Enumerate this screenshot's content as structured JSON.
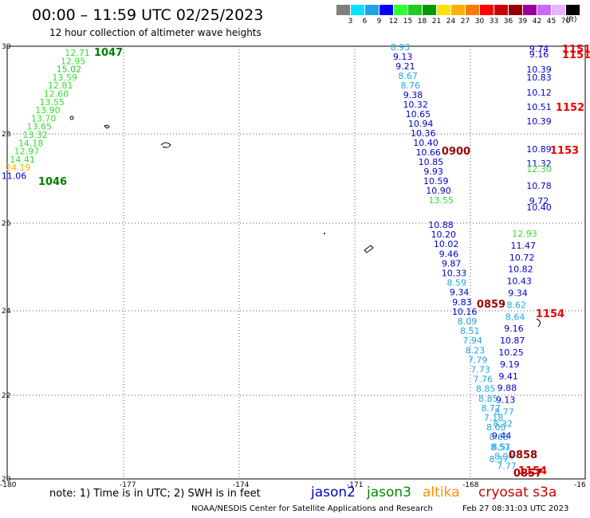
{
  "header": {
    "title": "00:00 – 11:59 UTC 02/25/2023",
    "subtitle": "12 hour collection of altimeter wave heights"
  },
  "legend": {
    "unit": "(ft)",
    "bins": [
      {
        "label": "3",
        "color": "#7f7f7f"
      },
      {
        "label": "6",
        "color": "#00e5ff"
      },
      {
        "label": "9",
        "color": "#1fa5e6"
      },
      {
        "label": "12",
        "color": "#0000ff"
      },
      {
        "label": "15",
        "color": "#33ff33"
      },
      {
        "label": "18",
        "color": "#1fcc1f"
      },
      {
        "label": "21",
        "color": "#009900"
      },
      {
        "label": "24",
        "color": "#ffe000"
      },
      {
        "label": "27",
        "color": "#ffb000"
      },
      {
        "label": "30",
        "color": "#ff7a00"
      },
      {
        "label": "33",
        "color": "#ff0000"
      },
      {
        "label": "36",
        "color": "#cc0000"
      },
      {
        "label": "39",
        "color": "#990000"
      },
      {
        "label": "42",
        "color": "#990099"
      },
      {
        "label": "45",
        "color": "#cc66ff"
      },
      {
        "label": "70",
        "color": "#e5b3ff"
      },
      {
        "label": "",
        "color": "#000000"
      }
    ]
  },
  "axes": {
    "lat_labels": [
      "30",
      "28",
      "26",
      "24",
      "22",
      "20"
    ],
    "lon_labels": [
      "-180",
      "-177",
      "-174",
      "-171",
      "-168",
      "-16"
    ]
  },
  "tracks": {
    "west": {
      "color_light": "#66e666",
      "color_dark": "#008000",
      "values": [
        "12.71",
        "12.95",
        "15.02",
        "13.59",
        "12.81",
        "12.60",
        "13.55",
        "13.90",
        "13.70",
        "13.65",
        "13.32",
        "14.18",
        "12.97",
        "14.41",
        "24.19",
        "11.06"
      ],
      "time_top": "1047",
      "time_bottom": "1046"
    },
    "middle_upper": [
      "8.93",
      "9.13",
      "9.21",
      "8.67",
      "8.76",
      "9.38",
      "10.32",
      "10.65",
      "10.94",
      "10.36",
      "10.40",
      "10.66",
      "10.85",
      "9.93",
      "10.59",
      "10.90",
      "13.55"
    ],
    "middle_time_upper": "0900",
    "middle_lower": [
      "10.88",
      "10.20",
      "10.02",
      "9.46",
      "9.87",
      "10.33",
      "8.59",
      "9.34",
      "9.83",
      "10.16",
      "8.09",
      "8.51",
      "7.94",
      "8.23",
      "7.79",
      "7.73",
      "7.76",
      "8.85",
      "8.85",
      "8.77",
      "7.18",
      "8.00",
      "8.63",
      "8.51",
      "8.04",
      "7.77"
    ],
    "middle_time_lower": "0859",
    "east_upper": [
      "9.74",
      "9.16",
      "10.39",
      "10.83",
      "10.12",
      "10.51",
      "10.39",
      "10.89",
      "11.32",
      "12.30",
      "10.78",
      "9.72",
      "10.40"
    ],
    "east_lower": [
      "12.93",
      "11.47",
      "10.72",
      "10.82",
      "10.43",
      "9.34",
      "8.62",
      "8.64",
      "9.16",
      "10.87",
      "10.25",
      "9.19",
      "9.41",
      "9.88",
      "9.13",
      "8.77",
      "8.32",
      "9.44",
      "8.57",
      "8.37"
    ],
    "cryosat_times": [
      "1151",
      "1151",
      "1152",
      "1153",
      "1154"
    ],
    "jason_times_lower": [
      "0858",
      "0857"
    ]
  },
  "note": "note:  1) Time is in UTC;  2) SWH is in feet",
  "satellites": [
    {
      "name": "jason2",
      "color": "#0000cc"
    },
    {
      "name": "jason3",
      "color": "#008800"
    },
    {
      "name": "altika",
      "color": "#ff8c00"
    },
    {
      "name": "cryosat s3a",
      "color": "#cc0000"
    }
  ],
  "footer": {
    "left": "NOAA/NESDIS Center for Satellite Applications and Research",
    "right": "Feb 27 08:31:03 UTC 2023"
  }
}
